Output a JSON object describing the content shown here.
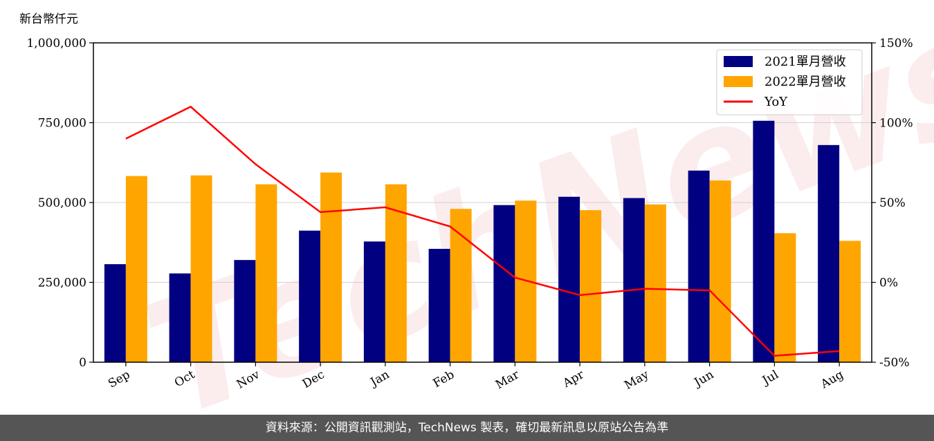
{
  "chart_data": {
    "type": "bar",
    "unit_label": "新台幣仟元",
    "categories": [
      "Sep",
      "Oct",
      "Nov",
      "Dec",
      "Jan",
      "Feb",
      "Mar",
      "Apr",
      "May",
      "Jun",
      "Jul",
      "Aug"
    ],
    "series": [
      {
        "name": "2021單月營收",
        "type": "bar",
        "axis": "left",
        "color": "#000080",
        "values": [
          307000,
          278000,
          320000,
          412000,
          378000,
          355000,
          492000,
          518000,
          514000,
          600000,
          756000,
          680000
        ]
      },
      {
        "name": "2022單月營收",
        "type": "bar",
        "axis": "left",
        "color": "#FFA500",
        "values": [
          583000,
          585000,
          557000,
          594000,
          557000,
          480000,
          506000,
          476000,
          494000,
          569000,
          404000,
          380000
        ]
      },
      {
        "name": "YoY",
        "type": "line",
        "axis": "right",
        "color": "#FF0000",
        "unit": "%",
        "values": [
          90,
          110,
          74,
          44,
          47,
          35,
          3,
          -8,
          -4,
          -5,
          -46,
          -43
        ]
      }
    ],
    "y_left": {
      "min": 0,
      "max": 1000000,
      "ticks": [
        0,
        250000,
        500000,
        750000,
        1000000
      ],
      "tick_labels": [
        "0",
        "250,000",
        "500,000",
        "750,000",
        "1,000,000"
      ]
    },
    "y_right": {
      "min": -50,
      "max": 150,
      "ticks": [
        -50,
        0,
        50,
        100,
        150
      ],
      "tick_labels": [
        "-50%",
        "0%",
        "50%",
        "100%",
        "150%"
      ]
    },
    "grid": "horizontal",
    "legend": "top-right",
    "watermark": "TechNews"
  },
  "footer": {
    "text": "資料來源：公開資訊觀測站，TechNews 製表，確切最新訊息以原站公告為準"
  },
  "colors": {
    "bar2021": "#000080",
    "bar2022": "#FFA500",
    "yoy": "#FF0000",
    "footer_bg": "#555555",
    "watermark": "#F5CCCC"
  }
}
